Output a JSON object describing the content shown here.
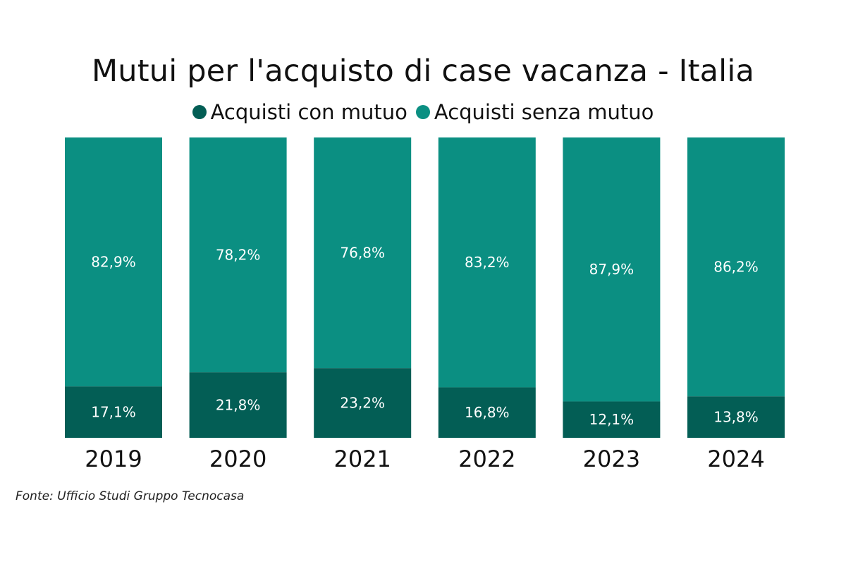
{
  "colors": {
    "con_mutuo": "#035e55",
    "senza_mutuo": "#0b8f82",
    "label_text": "#ffffff",
    "axis_text": "#111111"
  },
  "source": "Fonte: Ufficio Studi Gruppo Tecnocasa",
  "chart_data": {
    "type": "bar",
    "stacked": true,
    "normalized_percent": true,
    "title": "Mutui per l'acquisto di case vacanza - Italia",
    "categories": [
      "2019",
      "2020",
      "2021",
      "2022",
      "2023",
      "2024"
    ],
    "series": [
      {
        "name": "Acquisti con mutuo",
        "values": [
          17.1,
          21.8,
          23.2,
          16.8,
          12.1,
          13.8
        ],
        "labels": [
          "17,1%",
          "21,8%",
          "23,2%",
          "16,8%",
          "12,1%",
          "13,8%"
        ]
      },
      {
        "name": "Acquisti senza mutuo",
        "values": [
          82.9,
          78.2,
          76.8,
          83.2,
          87.9,
          86.2
        ],
        "labels": [
          "82,9%",
          "78,2%",
          "76,8%",
          "83,2%",
          "87,9%",
          "86,2%"
        ]
      }
    ],
    "ylim": [
      0,
      100
    ],
    "legend_position": "top-center",
    "grid": false
  }
}
